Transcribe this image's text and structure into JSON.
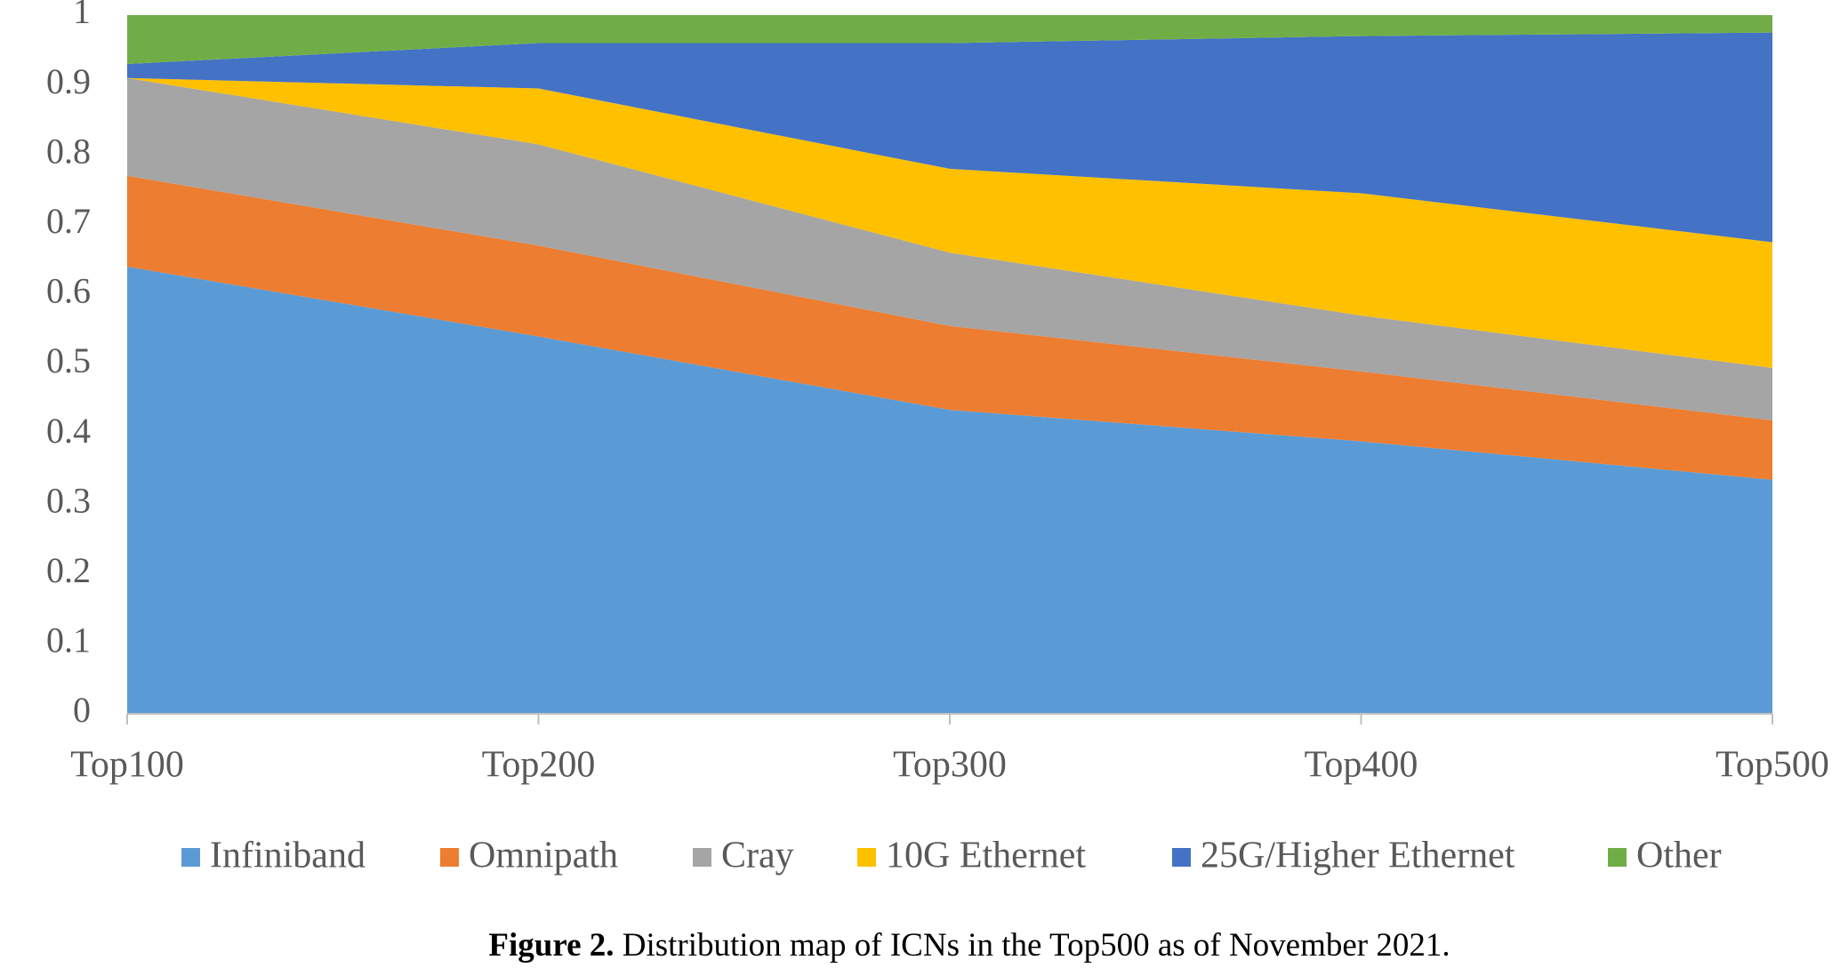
{
  "chart_data": {
    "type": "stacked_area",
    "categories": [
      "Top100",
      "Top200",
      "Top300",
      "Top400",
      "Top500"
    ],
    "series": [
      {
        "name": "Infiniband",
        "color": "#5b9bd5",
        "values": [
          0.64,
          0.54,
          0.435,
          0.39,
          0.335
        ]
      },
      {
        "name": "Omnipath",
        "color": "#ed7d31",
        "values": [
          0.13,
          0.13,
          0.12,
          0.1,
          0.085
        ]
      },
      {
        "name": "Cray",
        "color": "#a5a5a5",
        "values": [
          0.14,
          0.145,
          0.105,
          0.08,
          0.075
        ]
      },
      {
        "name": "10G Ethernet",
        "color": "#ffc000",
        "values": [
          0,
          0.08,
          0.12,
          0.175,
          0.18
        ]
      },
      {
        "name": "25G/Higher Ethernet",
        "color": "#4472c4",
        "values": [
          0.02,
          0.065,
          0.18,
          0.225,
          0.3
        ]
      },
      {
        "name": "Other",
        "color": "#70ad47",
        "values": [
          0.07,
          0.04,
          0.04,
          0.03,
          0.025
        ]
      }
    ],
    "ylim": [
      0,
      1
    ],
    "yticks": [
      0,
      0.1,
      0.2,
      0.3,
      0.4,
      0.5,
      0.6,
      0.7,
      0.8,
      0.9,
      1
    ],
    "legend": "bottom"
  },
  "caption": {
    "label": "Figure 2.",
    "text": "Distribution map of ICNs in the Top500 as of November 2021."
  }
}
